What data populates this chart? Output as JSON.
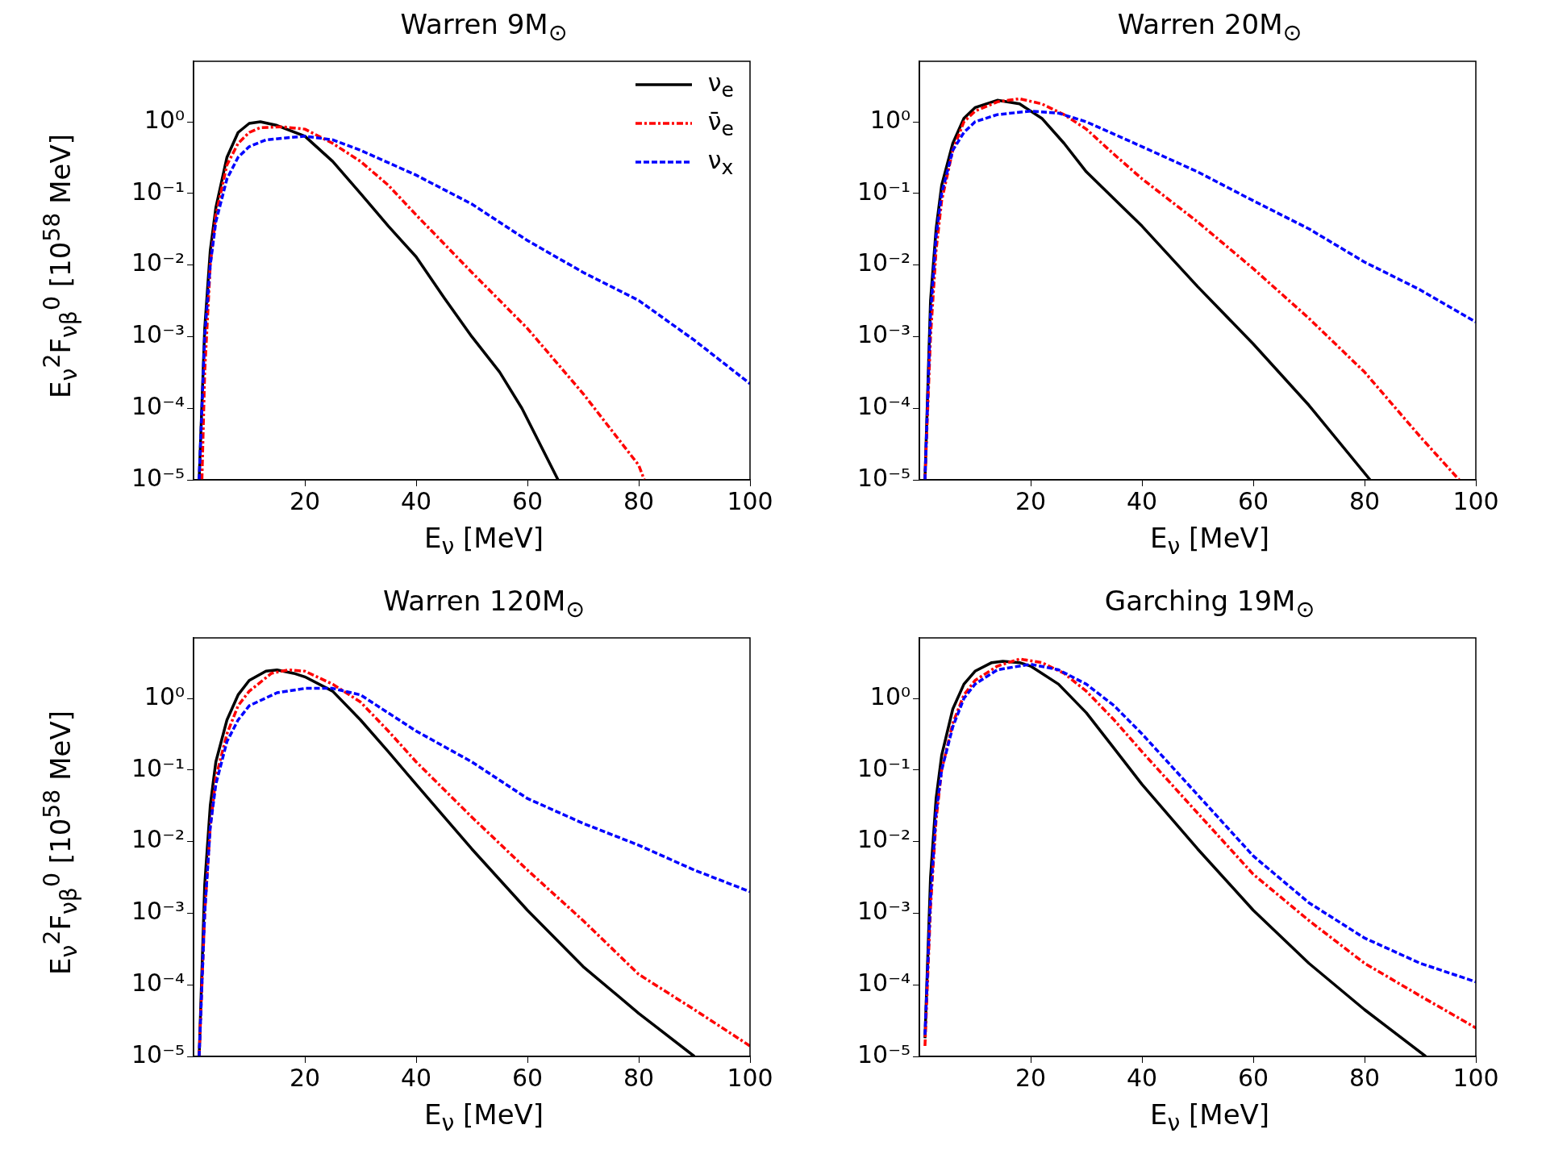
{
  "chart_data": [
    {
      "type": "line",
      "title": "Warren 9M$_{⊙}$",
      "xlabel": "E$_{ν}$ [MeV]",
      "ylabel": "E$_{ν}$$^{2}$F$_{νβ}$$^{0}$ [10$^{58}$ MeV]",
      "log": "y",
      "grid": false,
      "legend": "top right",
      "xlim": [
        0,
        100
      ],
      "ylim": [
        1e-05,
        7
      ],
      "xticks": [
        20,
        40,
        60,
        80,
        100
      ],
      "yticks": [
        {
          "value": 1e-05,
          "label": "10⁻⁵"
        },
        {
          "value": 0.0001,
          "label": "10⁻⁴"
        },
        {
          "value": 0.001,
          "label": "10⁻³"
        },
        {
          "value": 0.01,
          "label": "10⁻²"
        },
        {
          "value": 0.1,
          "label": "10⁻¹"
        },
        {
          "value": 1,
          "label": "10⁰"
        }
      ],
      "series": [
        {
          "name": "ν$_{e}$",
          "color": "#000000",
          "line_style": "solid",
          "x": [
            1,
            2,
            3,
            4,
            6,
            8,
            10,
            12,
            15,
            20,
            25,
            30,
            35,
            40,
            45,
            50,
            55,
            59,
            65.5
          ],
          "values": [
            1e-05,
            0.0013,
            0.016,
            0.063,
            0.32,
            0.71,
            0.95,
            1.0,
            0.89,
            0.63,
            0.28,
            0.1,
            0.035,
            0.013,
            0.0035,
            0.001,
            0.00032,
            0.0001,
            1e-05
          ]
        },
        {
          "name": "ν̄$_{e}$",
          "color": "#ff0000",
          "line_style": "dashdot",
          "x": [
            1.5,
            2,
            3,
            4,
            6,
            8,
            10,
            12,
            16,
            20,
            25,
            30,
            35,
            40,
            50,
            60,
            70,
            80,
            81
          ],
          "values": [
            1e-05,
            0.00032,
            0.01,
            0.05,
            0.25,
            0.5,
            0.71,
            0.83,
            0.85,
            0.79,
            0.5,
            0.28,
            0.13,
            0.05,
            0.0079,
            0.0013,
            0.00016,
            1.6e-05,
            1e-05
          ]
        },
        {
          "name": "ν$_{x}$",
          "color": "#0000ff",
          "line_style": "dashed",
          "x": [
            1,
            2,
            3,
            4,
            6,
            8,
            10,
            13,
            17,
            20,
            25,
            30,
            40,
            50,
            60,
            70,
            80,
            90,
            100
          ],
          "values": [
            1e-05,
            0.001,
            0.01,
            0.04,
            0.16,
            0.32,
            0.45,
            0.56,
            0.6,
            0.63,
            0.56,
            0.4,
            0.18,
            0.071,
            0.022,
            0.0079,
            0.0032,
            0.00089,
            0.00022
          ]
        }
      ]
    },
    {
      "type": "line",
      "title": "Warren 20M$_{⊙}$",
      "xlabel": "E$_{ν}$ [MeV]",
      "log": "y",
      "grid": false,
      "xlim": [
        0,
        100
      ],
      "ylim": [
        1e-05,
        7
      ],
      "xticks": [
        20,
        40,
        60,
        80,
        100
      ],
      "yticks": [
        {
          "value": 1e-05,
          "label": "10⁻⁵"
        },
        {
          "value": 0.0001,
          "label": "10⁻⁴"
        },
        {
          "value": 0.001,
          "label": "10⁻³"
        },
        {
          "value": 0.01,
          "label": "10⁻²"
        },
        {
          "value": 0.1,
          "label": "10⁻¹"
        },
        {
          "value": 1,
          "label": "10⁰"
        }
      ],
      "series": [
        {
          "color": "#000000",
          "line_style": "solid",
          "x": [
            1,
            2,
            3,
            4,
            6,
            8,
            10,
            14,
            18,
            22,
            26,
            30,
            40,
            50,
            60,
            70,
            81
          ],
          "values": [
            1e-05,
            0.0032,
            0.032,
            0.13,
            0.5,
            1.12,
            1.58,
            2.0,
            1.78,
            1.12,
            0.5,
            0.2,
            0.035,
            0.005,
            0.00079,
            0.00011,
            1e-05
          ]
        },
        {
          "color": "#ff0000",
          "line_style": "dashdot",
          "x": [
            1,
            2,
            3,
            4,
            6,
            8,
            10,
            14,
            18,
            22,
            26,
            30,
            35,
            40,
            50,
            60,
            70,
            80,
            90,
            97
          ],
          "values": [
            1e-05,
            0.001,
            0.016,
            0.079,
            0.4,
            1.0,
            1.41,
            1.9,
            2.1,
            1.78,
            1.26,
            0.79,
            0.35,
            0.16,
            0.04,
            0.0089,
            0.0018,
            0.00032,
            4e-05,
            1e-05
          ]
        },
        {
          "color": "#0000ff",
          "line_style": "dashed",
          "x": [
            1,
            2,
            3,
            4,
            6,
            8,
            10,
            14,
            20,
            25,
            30,
            40,
            50,
            60,
            70,
            80,
            90,
            100
          ],
          "values": [
            1e-05,
            0.002,
            0.025,
            0.1,
            0.4,
            0.71,
            1.0,
            1.26,
            1.41,
            1.32,
            1.0,
            0.45,
            0.2,
            0.079,
            0.032,
            0.011,
            0.0045,
            0.0016
          ]
        }
      ]
    },
    {
      "type": "line",
      "title": "Warren 120M$_{⊙}$",
      "xlabel": "E$_{ν}$ [MeV]",
      "ylabel": "E$_{ν}$$^{2}$F$_{νβ}$$^{0}$ [10$^{58}$ MeV]",
      "log": "y",
      "grid": false,
      "xlim": [
        0,
        100
      ],
      "ylim": [
        1e-05,
        7
      ],
      "xticks": [
        20,
        40,
        60,
        80,
        100
      ],
      "yticks": [
        {
          "value": 1e-05,
          "label": "10⁻⁵"
        },
        {
          "value": 0.0001,
          "label": "10⁻⁴"
        },
        {
          "value": 0.001,
          "label": "10⁻³"
        },
        {
          "value": 0.01,
          "label": "10⁻²"
        },
        {
          "value": 0.1,
          "label": "10⁻¹"
        },
        {
          "value": 1,
          "label": "10⁰"
        }
      ],
      "series": [
        {
          "color": "#000000",
          "line_style": "solid",
          "x": [
            1,
            2,
            3,
            4,
            6,
            8,
            10,
            13,
            15,
            18,
            20,
            25,
            30,
            35,
            40,
            50,
            60,
            70,
            80,
            90
          ],
          "values": [
            1e-05,
            0.0025,
            0.032,
            0.13,
            0.5,
            1.12,
            1.78,
            2.4,
            2.5,
            2.24,
            2.0,
            1.26,
            0.5,
            0.18,
            0.063,
            0.0079,
            0.0011,
            0.00018,
            4e-05,
            1e-05
          ]
        },
        {
          "color": "#ff0000",
          "line_style": "dashdot",
          "x": [
            1,
            2,
            3,
            4,
            6,
            8,
            10,
            14,
            17,
            20,
            25,
            30,
            35,
            40,
            50,
            60,
            70,
            80,
            90,
            100
          ],
          "values": [
            1e-05,
            0.001,
            0.016,
            0.079,
            0.32,
            0.79,
            1.26,
            2.24,
            2.5,
            2.4,
            1.58,
            0.89,
            0.35,
            0.13,
            0.022,
            0.004,
            0.00079,
            0.00014,
            4.5e-05,
            1.4e-05
          ]
        },
        {
          "color": "#0000ff",
          "line_style": "dashed",
          "x": [
            1,
            2,
            3,
            4,
            6,
            8,
            10,
            15,
            20,
            25,
            30,
            40,
            50,
            60,
            70,
            80,
            90,
            100
          ],
          "values": [
            1e-05,
            0.001,
            0.016,
            0.063,
            0.25,
            0.5,
            0.79,
            1.2,
            1.38,
            1.38,
            1.12,
            0.35,
            0.13,
            0.04,
            0.018,
            0.0089,
            0.004,
            0.002
          ]
        }
      ]
    },
    {
      "type": "line",
      "title": "Garching 19M$_{⊙}$",
      "xlabel": "E$_{ν}$ [MeV]",
      "log": "y",
      "grid": false,
      "xlim": [
        0,
        100
      ],
      "ylim": [
        1e-05,
        7
      ],
      "xticks": [
        20,
        40,
        60,
        80,
        100
      ],
      "yticks": [
        {
          "value": 1e-05,
          "label": "10⁻⁵"
        },
        {
          "value": 0.0001,
          "label": "10⁻⁴"
        },
        {
          "value": 0.001,
          "label": "10⁻³"
        },
        {
          "value": 0.01,
          "label": "10⁻²"
        },
        {
          "value": 0.1,
          "label": "10⁻¹"
        },
        {
          "value": 1,
          "label": "10⁰"
        }
      ],
      "series": [
        {
          "color": "#000000",
          "line_style": "solid",
          "x": [
            1,
            2,
            3,
            4,
            6,
            8,
            10,
            13,
            15,
            18,
            20,
            25,
            30,
            35,
            40,
            50,
            60,
            70,
            80,
            91
          ],
          "values": [
            1.8e-05,
            0.0032,
            0.04,
            0.16,
            0.71,
            1.58,
            2.4,
            3.16,
            3.3,
            3.16,
            2.82,
            1.58,
            0.63,
            0.2,
            0.063,
            0.0079,
            0.0011,
            0.0002,
            4.5e-05,
            1e-05
          ]
        },
        {
          "color": "#ff0000",
          "line_style": "dashdot",
          "x": [
            1,
            2,
            3,
            4,
            6,
            8,
            10,
            14,
            18,
            22,
            26,
            30,
            35,
            40,
            50,
            60,
            70,
            80,
            90,
            100
          ],
          "values": [
            1.4e-05,
            0.0012,
            0.02,
            0.1,
            0.45,
            1.12,
            1.78,
            2.82,
            3.55,
            3.16,
            2.24,
            1.26,
            0.5,
            0.18,
            0.025,
            0.0035,
            0.00079,
            0.0002,
            7e-05,
            2.5e-05
          ]
        },
        {
          "color": "#0000ff",
          "line_style": "dashed",
          "x": [
            1,
            2,
            3,
            4,
            6,
            8,
            10,
            14,
            20,
            25,
            30,
            35,
            40,
            50,
            60,
            70,
            80,
            90,
            100
          ],
          "values": [
            2e-05,
            0.0016,
            0.025,
            0.1,
            0.4,
            1.0,
            1.58,
            2.51,
            3.0,
            2.51,
            1.58,
            0.79,
            0.32,
            0.045,
            0.0063,
            0.0014,
            0.00045,
            0.0002,
            0.00011
          ]
        }
      ]
    }
  ]
}
